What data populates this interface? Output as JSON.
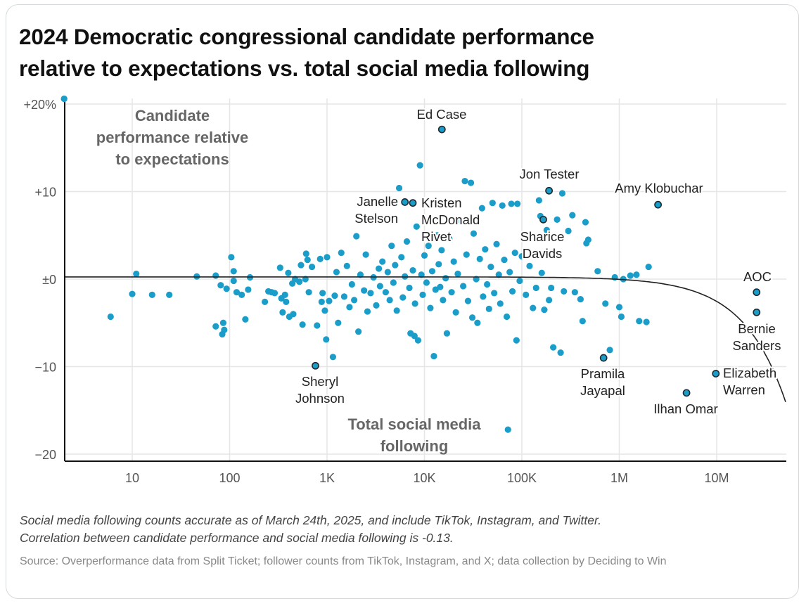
{
  "title_lines": [
    "2024 Democratic congressional candidate performance",
    "relative to expectations vs. total social media following"
  ],
  "footnote_lines": [
    "Social media following counts accurate as of March 24th, 2025, and include TikTok, Instagram, and Twitter.",
    "Correlation between candidate performance and social media following is -0.13."
  ],
  "source": "Source: Overperformance data from Split Ticket; follower counts from TikTok, Instagram, and X; data collection by Deciding to Win",
  "chart_data": {
    "type": "scatter",
    "title": "2024 Democratic congressional candidate performance relative to expectations vs. total social media following",
    "xlabel_lines": [
      "Total social media",
      "following"
    ],
    "ylabel_lines": [
      "Candidate",
      "performance relative",
      "to expectations"
    ],
    "x_scale": "log",
    "xlim": [
      2,
      51000000
    ],
    "ylim": [
      -20.5,
      20.5
    ],
    "x_ticks": [
      {
        "value": 10,
        "label": "10"
      },
      {
        "value": 100,
        "label": "100"
      },
      {
        "value": 1000,
        "label": "1K"
      },
      {
        "value": 10000,
        "label": "10K"
      },
      {
        "value": 100000,
        "label": "100K"
      },
      {
        "value": 1000000,
        "label": "1M"
      },
      {
        "value": 10000000,
        "label": "10M"
      }
    ],
    "y_ticks": [
      {
        "value": 20,
        "label": "+20%"
      },
      {
        "value": 10,
        "label": "+10"
      },
      {
        "value": 0,
        "label": "±0"
      },
      {
        "value": -10,
        "label": "−10"
      },
      {
        "value": -20,
        "label": "−20"
      }
    ],
    "grid": true,
    "point_color": "#1b9dc9",
    "trend": {
      "type": "linear",
      "intercept": 0.25,
      "slope_per_million": -0.28
    },
    "correlation": -0.13,
    "labeled_points": [
      {
        "name": "Ed Case",
        "lines": [
          "Ed Case"
        ],
        "followers": 15100,
        "value": 17.1
      },
      {
        "name": "Janelle Stelson",
        "lines": [
          "Janelle",
          "Stelson"
        ],
        "followers": 6300,
        "value": 8.8
      },
      {
        "name": "Kristen McDonald Rivet",
        "lines": [
          "Kristen",
          "McDonald",
          "Rivet"
        ],
        "followers": 7600,
        "value": 8.7
      },
      {
        "name": "Jon Tester",
        "lines": [
          "Jon Tester"
        ],
        "followers": 190000,
        "value": 10.1
      },
      {
        "name": "Sharice Davids",
        "lines": [
          "Sharice",
          "Davids"
        ],
        "followers": 166000,
        "value": 6.8
      },
      {
        "name": "Amy Klobuchar",
        "lines": [
          "Amy Klobuchar"
        ],
        "followers": 2500000,
        "value": 8.5
      },
      {
        "name": "AOC",
        "lines": [
          "AOC"
        ],
        "followers": 25700000,
        "value": -1.5
      },
      {
        "name": "Bernie Sanders",
        "lines": [
          "Bernie",
          "Sanders"
        ],
        "followers": 25700000,
        "value": -3.8
      },
      {
        "name": "Elizabeth Warren",
        "lines": [
          "Elizabeth",
          "Warren"
        ],
        "followers": 9800000,
        "value": -10.8
      },
      {
        "name": "Ilhan Omar",
        "lines": [
          "Ilhan Omar"
        ],
        "followers": 4900000,
        "value": -13.0
      },
      {
        "name": "Pramila Jayapal",
        "lines": [
          "Pramila",
          "Jayapal"
        ],
        "followers": 690000,
        "value": -9.0
      },
      {
        "name": "Sheryl Johnson",
        "lines": [
          "Sheryl",
          "Johnson"
        ],
        "followers": 760,
        "value": -9.9
      }
    ],
    "points": [
      [
        2,
        20.6
      ],
      [
        6,
        -4.3
      ],
      [
        10,
        -1.7
      ],
      [
        11,
        0.6
      ],
      [
        16,
        -1.8
      ],
      [
        24,
        -1.8
      ],
      [
        46,
        0.3
      ],
      [
        72,
        0.4
      ],
      [
        72,
        -5.4
      ],
      [
        86,
        -5.0
      ],
      [
        84,
        -6.3
      ],
      [
        88,
        -5.8
      ],
      [
        81,
        -0.7
      ],
      [
        93,
        -1.1
      ],
      [
        104,
        2.5
      ],
      [
        110,
        0.9
      ],
      [
        110,
        -0.2
      ],
      [
        118,
        -1.5
      ],
      [
        133,
        -1.8
      ],
      [
        155,
        -1.2
      ],
      [
        145,
        -4.6
      ],
      [
        162,
        0.2
      ],
      [
        230,
        -2.6
      ],
      [
        250,
        -1.4
      ],
      [
        270,
        -1.5
      ],
      [
        290,
        -1.6
      ],
      [
        330,
        1.3
      ],
      [
        340,
        -2.2
      ],
      [
        350,
        -3.8
      ],
      [
        370,
        -1.8
      ],
      [
        380,
        -2.6
      ],
      [
        400,
        0.7
      ],
      [
        410,
        -4.3
      ],
      [
        440,
        -0.5
      ],
      [
        450,
        -4.0
      ],
      [
        470,
        0.0
      ],
      [
        520,
        -0.3
      ],
      [
        540,
        1.6
      ],
      [
        560,
        -5.2
      ],
      [
        600,
        0.0
      ],
      [
        610,
        2.9
      ],
      [
        630,
        2.2
      ],
      [
        650,
        -1.5
      ],
      [
        700,
        1.4
      ],
      [
        790,
        -5.3
      ],
      [
        850,
        2.3
      ],
      [
        880,
        -2.6
      ],
      [
        900,
        -1.6
      ],
      [
        950,
        -3.6
      ],
      [
        980,
        -6.9
      ],
      [
        1000,
        2.5
      ],
      [
        1050,
        -2.5
      ],
      [
        1150,
        -8.9
      ],
      [
        1200,
        -1.9
      ],
      [
        1250,
        0.8
      ],
      [
        1300,
        -5.0
      ],
      [
        1400,
        3.0
      ],
      [
        1500,
        -2.0
      ],
      [
        1600,
        1.5
      ],
      [
        1700,
        -3.2
      ],
      [
        1800,
        -0.6
      ],
      [
        1900,
        -2.4
      ],
      [
        2000,
        4.9
      ],
      [
        2100,
        -6.0
      ],
      [
        2200,
        0.5
      ],
      [
        2400,
        -1.3
      ],
      [
        2500,
        2.8
      ],
      [
        2600,
        -3.7
      ],
      [
        2800,
        -1.6
      ],
      [
        3000,
        0.2
      ],
      [
        3200,
        -3.0
      ],
      [
        3400,
        1.2
      ],
      [
        3500,
        -0.8
      ],
      [
        3700,
        2.0
      ],
      [
        4000,
        -1.5
      ],
      [
        4200,
        0.8
      ],
      [
        4400,
        -2.4
      ],
      [
        4600,
        3.8
      ],
      [
        4800,
        -0.4
      ],
      [
        5000,
        1.6
      ],
      [
        5200,
        -3.6
      ],
      [
        5500,
        10.4
      ],
      [
        5800,
        2.5
      ],
      [
        6000,
        -2.1
      ],
      [
        6300,
        0.3
      ],
      [
        6600,
        4.3
      ],
      [
        7000,
        -1.0
      ],
      [
        7200,
        -6.2
      ],
      [
        7600,
        1.0
      ],
      [
        7900,
        -6.5
      ],
      [
        8000,
        -2.8
      ],
      [
        8300,
        6.0
      ],
      [
        8600,
        -7.0
      ],
      [
        9000,
        13.0
      ],
      [
        9300,
        0.5
      ],
      [
        9600,
        -1.8
      ],
      [
        10000,
        2.7
      ],
      [
        10500,
        -0.4
      ],
      [
        11000,
        3.8
      ],
      [
        11500,
        -3.3
      ],
      [
        12000,
        0.9
      ],
      [
        12500,
        -8.8
      ],
      [
        13000,
        -1.2
      ],
      [
        13500,
        5.0
      ],
      [
        14000,
        1.7
      ],
      [
        14500,
        -0.9
      ],
      [
        15000,
        3.3
      ],
      [
        15500,
        -2.4
      ],
      [
        16500,
        0.1
      ],
      [
        17000,
        -6.2
      ],
      [
        18000,
        4.6
      ],
      [
        19000,
        -1.5
      ],
      [
        20000,
        2.0
      ],
      [
        21000,
        -3.8
      ],
      [
        22000,
        0.6
      ],
      [
        24000,
        6.6
      ],
      [
        25000,
        -0.8
      ],
      [
        26000,
        11.2
      ],
      [
        27000,
        2.8
      ],
      [
        28000,
        -2.5
      ],
      [
        30000,
        11.0
      ],
      [
        31000,
        -4.4
      ],
      [
        32000,
        5.2
      ],
      [
        34000,
        0.0
      ],
      [
        35000,
        -5.0
      ],
      [
        37000,
        2.3
      ],
      [
        39000,
        8.1
      ],
      [
        40000,
        -2.0
      ],
      [
        42000,
        3.4
      ],
      [
        44000,
        -0.6
      ],
      [
        46000,
        -3.4
      ],
      [
        48000,
        1.4
      ],
      [
        50000,
        8.7
      ],
      [
        52000,
        -1.6
      ],
      [
        55000,
        4.0
      ],
      [
        58000,
        0.5
      ],
      [
        60000,
        -2.8
      ],
      [
        63000,
        8.4
      ],
      [
        66000,
        2.2
      ],
      [
        70000,
        -4.3
      ],
      [
        72000,
        -17.2
      ],
      [
        75000,
        0.8
      ],
      [
        78000,
        8.6
      ],
      [
        80000,
        -1.4
      ],
      [
        85000,
        3.0
      ],
      [
        88000,
        -7.0
      ],
      [
        90000,
        8.6
      ],
      [
        95000,
        -0.2
      ],
      [
        100000,
        2.6
      ],
      [
        110000,
        -1.8
      ],
      [
        120000,
        1.5
      ],
      [
        130000,
        -3.3
      ],
      [
        140000,
        -1.0
      ],
      [
        150000,
        9.0
      ],
      [
        155000,
        7.2
      ],
      [
        160000,
        0.7
      ],
      [
        170000,
        -3.5
      ],
      [
        180000,
        5.6
      ],
      [
        190000,
        -2.4
      ],
      [
        200000,
        -1.0
      ],
      [
        210000,
        -7.8
      ],
      [
        230000,
        6.8
      ],
      [
        250000,
        -8.4
      ],
      [
        260000,
        9.8
      ],
      [
        270000,
        -1.4
      ],
      [
        300000,
        5.5
      ],
      [
        330000,
        7.3
      ],
      [
        350000,
        -1.5
      ],
      [
        400000,
        -2.3
      ],
      [
        420000,
        -4.8
      ],
      [
        450000,
        6.5
      ],
      [
        460000,
        4.1
      ],
      [
        480000,
        4.5
      ],
      [
        600000,
        0.9
      ],
      [
        720000,
        -2.8
      ],
      [
        800000,
        -8.1
      ],
      [
        900000,
        0.2
      ],
      [
        1000000,
        -3.2
      ],
      [
        1050000,
        -4.3
      ],
      [
        1100000,
        0.0
      ],
      [
        1300000,
        0.4
      ],
      [
        1500000,
        0.5
      ],
      [
        1600000,
        -4.8
      ],
      [
        1900000,
        -4.9
      ],
      [
        2000000,
        1.4
      ]
    ]
  }
}
